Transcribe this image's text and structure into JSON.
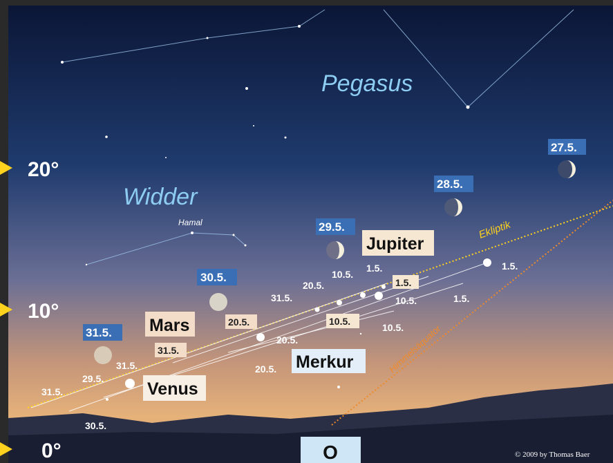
{
  "constellations": [
    "Pegasus",
    "Widder"
  ],
  "star_label": "Hamal",
  "altitude_marks": [
    "20°",
    "10°",
    "0°"
  ],
  "moon_dates": [
    "27.5.",
    "28.5.",
    "29.5.",
    "30.5.",
    "31.5."
  ],
  "planets": [
    "Jupiter",
    "Mars",
    "Venus",
    "Merkur"
  ],
  "lines": {
    "ecliptic": "Ekliptik",
    "equator": "Himmelsäquator"
  },
  "date_labels": [
    "1.5.",
    "1.5.",
    "1.5.",
    "1.5.",
    "10.5.",
    "10.5.",
    "10.5.",
    "10.5.",
    "20.5.",
    "31.5.",
    "20.5.",
    "20.5.",
    "20.5.",
    "31.5.",
    "31.5.",
    "29.5.",
    "31.5.",
    "30.5."
  ],
  "direction": "O",
  "credit": "© 2009 by Thomas Baer"
}
